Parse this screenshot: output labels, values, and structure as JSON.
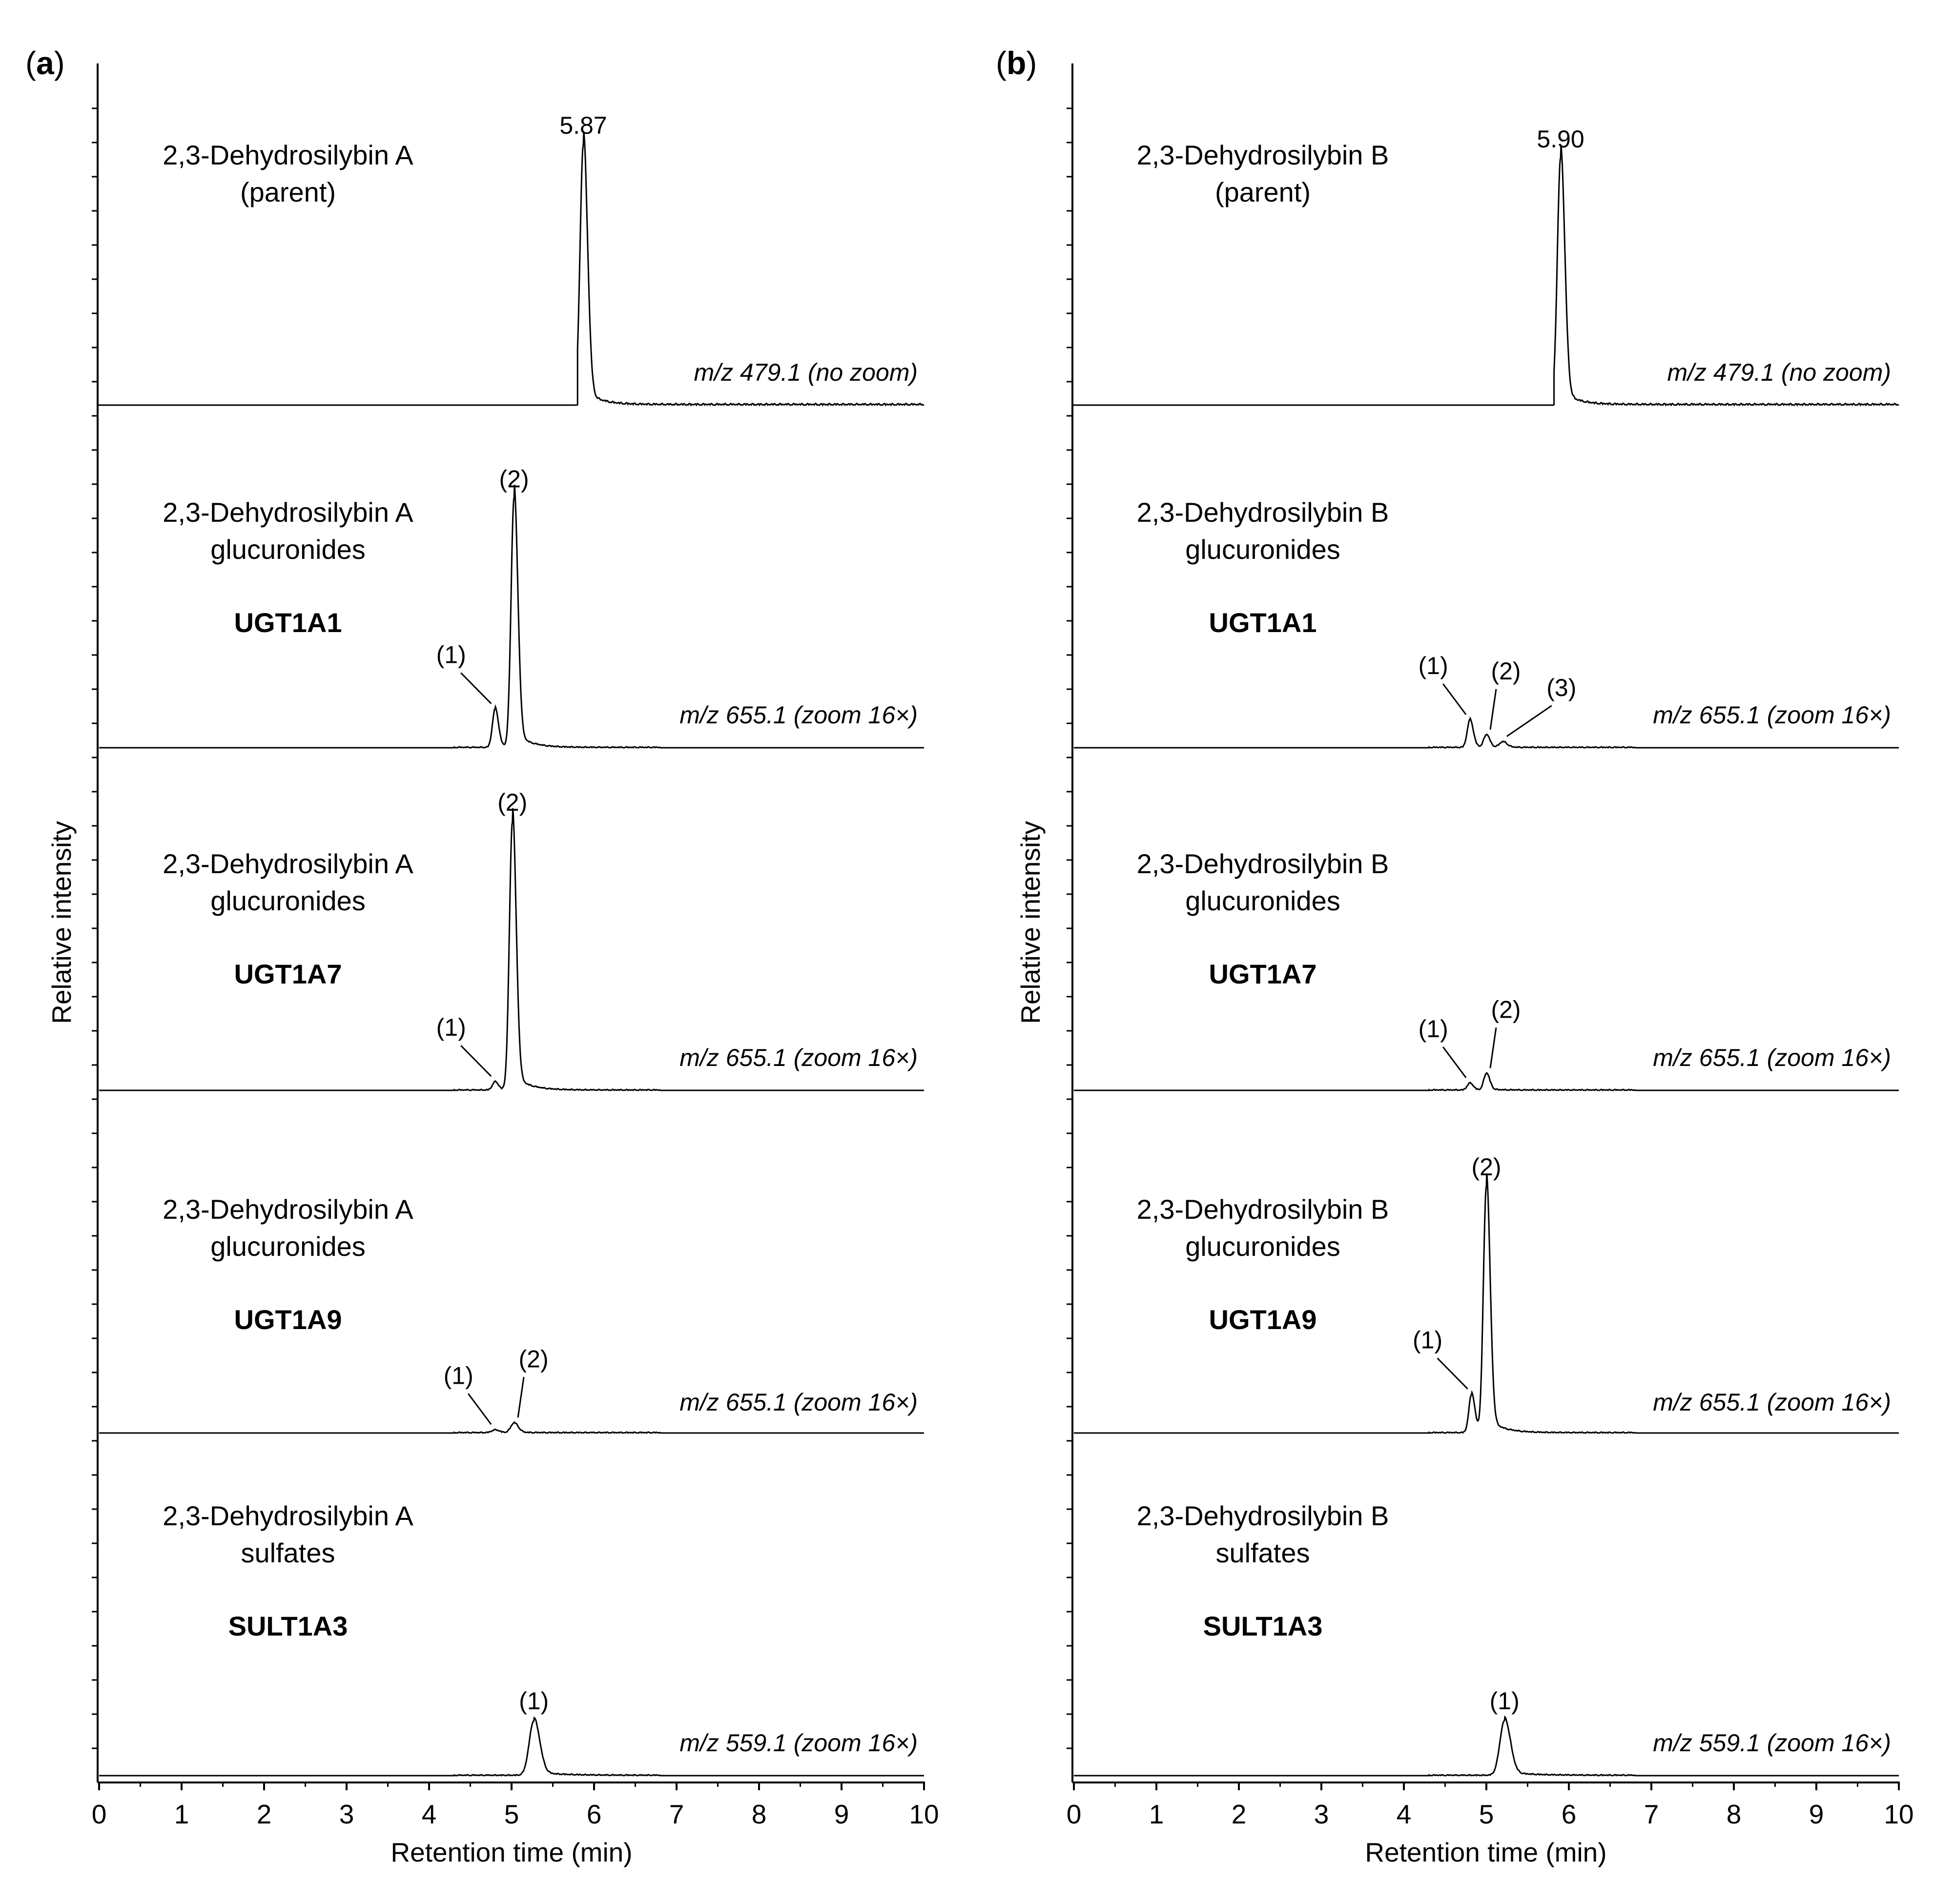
{
  "chart_data": [
    {
      "type": "line",
      "panel": "a",
      "xlabel": "Retention time (min)",
      "ylabel": "Relative intensity",
      "xlim": [
        0,
        10
      ],
      "xticks": [
        "0",
        "1",
        "2",
        "3",
        "4",
        "5",
        "6",
        "7",
        "8",
        "9",
        "10"
      ],
      "traces": [
        {
          "title": "2,3-Dehydrosilybin A",
          "subtitle": "(parent)",
          "enzyme": "",
          "mz": "m/z 479.1 (no zoom)",
          "xstart": 5.8,
          "peaks": [
            {
              "x": 5.87,
              "height": 0.95,
              "label": "5.87",
              "width": 0.05,
              "tail": 0.18
            }
          ],
          "annotations": []
        },
        {
          "title": "2,3-Dehydrosilybin A",
          "subtitle": "glucuronides",
          "enzyme": "UGT1A1",
          "mz": "m/z 655.1 (zoom 16×)",
          "xstart": 0,
          "peaks": [
            {
              "x": 4.8,
              "height": 0.14,
              "label": "(1)",
              "width": 0.04,
              "tail": 0.15
            },
            {
              "x": 5.03,
              "height": 0.91,
              "label": "(2)",
              "width": 0.045,
              "tail": 0.18
            }
          ],
          "annotations": [
            "(1)",
            "(2)"
          ]
        },
        {
          "title": "2,3-Dehydrosilybin A",
          "subtitle": "glucuronides",
          "enzyme": "UGT1A7",
          "mz": "m/z 655.1 (zoom 16×)",
          "xstart": 0,
          "peaks": [
            {
              "x": 4.8,
              "height": 0.03,
              "label": "(1)",
              "width": 0.04,
              "tail": 0.12
            },
            {
              "x": 5.01,
              "height": 0.98,
              "label": "(2)",
              "width": 0.045,
              "tail": 0.18
            }
          ],
          "annotations": [
            "(1)",
            "(2)"
          ]
        },
        {
          "title": "2,3-Dehydrosilybin A",
          "subtitle": "glucuronides",
          "enzyme": "UGT1A9",
          "mz": "m/z 655.1 (zoom 16×)",
          "xstart": 0,
          "peaks": [
            {
              "x": 4.8,
              "height": 0.01,
              "label": "(1)",
              "width": 0.05,
              "tail": 0.12
            },
            {
              "x": 5.03,
              "height": 0.035,
              "label": "(2)",
              "width": 0.05,
              "tail": 0.12
            }
          ],
          "annotations": [
            "(1)",
            "(2)"
          ]
        },
        {
          "title": "2,3-Dehydrosilybin A",
          "subtitle": "sulfates",
          "enzyme": "SULT1A3",
          "mz": "m/z 559.1 (zoom 16×)",
          "xstart": 0,
          "peaks": [
            {
              "x": 5.27,
              "height": 0.2,
              "label": "(1)",
              "width": 0.07,
              "tail": 0.3
            }
          ],
          "annotations": [
            "(1)"
          ]
        }
      ]
    },
    {
      "type": "line",
      "panel": "b",
      "xlabel": "Retention time (min)",
      "ylabel": "Relative intensity",
      "xlim": [
        0,
        10
      ],
      "xticks": [
        "0",
        "1",
        "2",
        "3",
        "4",
        "5",
        "6",
        "7",
        "8",
        "9",
        "10"
      ],
      "traces": [
        {
          "title": "2,3-Dehydrosilybin B",
          "subtitle": "(parent)",
          "enzyme": "",
          "mz": "m/z 479.1 (no zoom)",
          "xstart": 5.82,
          "peaks": [
            {
              "x": 5.9,
              "height": 0.9,
              "label": "5.90",
              "width": 0.05,
              "tail": 0.18
            }
          ],
          "annotations": []
        },
        {
          "title": "2,3-Dehydrosilybin B",
          "subtitle": "glucuronides",
          "enzyme": "UGT1A1",
          "mz": "m/z 655.1 (zoom 16×)",
          "xstart": 0,
          "peaks": [
            {
              "x": 4.8,
              "height": 0.1,
              "label": "(1)",
              "width": 0.04,
              "tail": 0.12
            },
            {
              "x": 5.0,
              "height": 0.045,
              "label": "(2)",
              "width": 0.04,
              "tail": 0.1
            },
            {
              "x": 5.2,
              "height": 0.02,
              "label": "(3)",
              "width": 0.05,
              "tail": 0.12
            }
          ],
          "annotations": [
            "(1)",
            "(2)",
            "(3)"
          ]
        },
        {
          "title": "2,3-Dehydrosilybin B",
          "subtitle": "glucuronides",
          "enzyme": "UGT1A7",
          "mz": "m/z 655.1 (zoom 16×)",
          "xstart": 0,
          "peaks": [
            {
              "x": 4.8,
              "height": 0.025,
              "label": "(1)",
              "width": 0.04,
              "tail": 0.1
            },
            {
              "x": 5.0,
              "height": 0.06,
              "label": "(2)",
              "width": 0.04,
              "tail": 0.12
            }
          ],
          "annotations": [
            "(1)",
            "(2)"
          ]
        },
        {
          "title": "2,3-Dehydrosilybin B",
          "subtitle": "glucuronides",
          "enzyme": "UGT1A9",
          "mz": "m/z 655.1 (zoom 16×)",
          "xstart": 0,
          "peaks": [
            {
              "x": 4.82,
              "height": 0.14,
              "label": "(1)",
              "width": 0.04,
              "tail": 0.12
            },
            {
              "x": 5.0,
              "height": 0.9,
              "label": "(2)",
              "width": 0.045,
              "tail": 0.18
            }
          ],
          "annotations": [
            "(1)",
            "(2)"
          ]
        },
        {
          "title": "2,3-Dehydrosilybin B",
          "subtitle": "sulfates",
          "enzyme": "SULT1A3",
          "mz": "m/z 559.1 (zoom 16×)",
          "xstart": 0,
          "peaks": [
            {
              "x": 5.22,
              "height": 0.2,
              "label": "(1)",
              "width": 0.07,
              "tail": 0.3
            }
          ],
          "annotations": [
            "(1)"
          ]
        }
      ]
    }
  ],
  "panels": [
    {
      "open": "(",
      "letter": "a",
      "close": ")"
    },
    {
      "open": "(",
      "letter": "b",
      "close": ")"
    }
  ]
}
